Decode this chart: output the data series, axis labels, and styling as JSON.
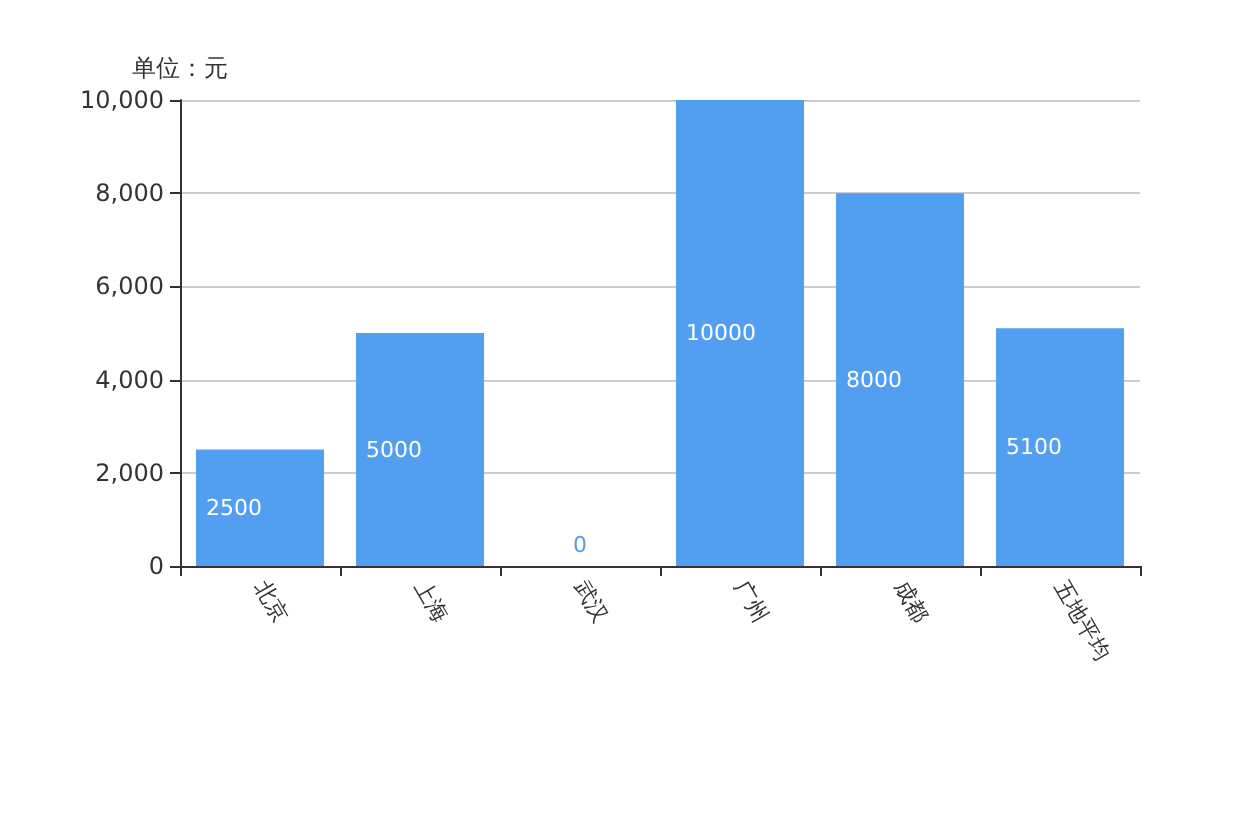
{
  "chart_data": {
    "type": "bar",
    "ylabel": "单位：元",
    "categories": [
      "北京",
      "上海",
      "武汉",
      "广州",
      "成都",
      "五地平均"
    ],
    "values": [
      2500,
      5000,
      0,
      10000,
      8000,
      5100
    ],
    "color": "#529ef0",
    "ylim": [
      0,
      10000
    ],
    "yticks": [
      {
        "value": 0,
        "label": "0"
      },
      {
        "value": 2000,
        "label": "2,000"
      },
      {
        "value": 4000,
        "label": "4,000"
      },
      {
        "value": 6000,
        "label": "6,000"
      },
      {
        "value": 8000,
        "label": "8,000"
      },
      {
        "value": 10000,
        "label": "10,000"
      }
    ],
    "grid": "y",
    "data_labels": true
  }
}
